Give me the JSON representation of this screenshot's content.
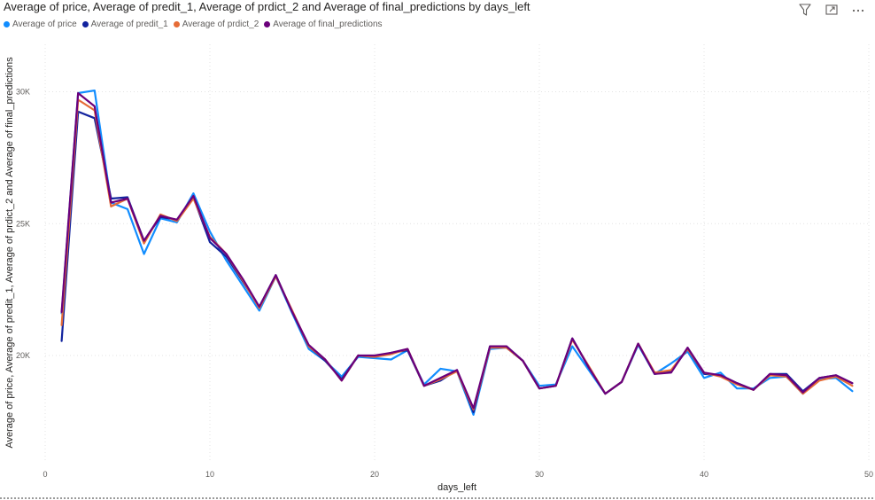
{
  "visual": {
    "title": "Average of price, Average of predit_1, Average of prdict_2 and Average of final_predictions by days_left",
    "icons": [
      "filter-icon",
      "focus-mode-icon",
      "more-options-icon"
    ]
  },
  "chart_data": {
    "type": "line",
    "title": "Average of price, Average of predit_1, Average of prdict_2 and Average of final_predictions by days_left",
    "xlabel": "days_left",
    "ylabel": "Average of price, Average of predit_1, Average of prdict_2 and Average of final_predictions",
    "xlim": [
      0,
      50
    ],
    "ylim": [
      16000,
      31800
    ],
    "xticks": [
      0,
      10,
      20,
      30,
      40,
      50
    ],
    "yticks": [
      20000,
      25000,
      30000
    ],
    "ytick_labels": [
      "20K",
      "25K",
      "30K"
    ],
    "grid": true,
    "legend_position": "top-left",
    "x": [
      1,
      2,
      3,
      4,
      5,
      6,
      7,
      8,
      9,
      10,
      11,
      12,
      13,
      14,
      15,
      16,
      17,
      18,
      19,
      20,
      21,
      22,
      23,
      24,
      25,
      26,
      27,
      28,
      29,
      30,
      31,
      32,
      33,
      34,
      35,
      36,
      37,
      38,
      39,
      40,
      41,
      42,
      43,
      44,
      45,
      46,
      47,
      48,
      49
    ],
    "series": [
      {
        "name": "Average of price",
        "color": "#118DFF",
        "values": [
          21600,
          29950,
          30050,
          25800,
          25550,
          23850,
          25200,
          25050,
          26150,
          24700,
          23600,
          22650,
          21700,
          23000,
          21600,
          20250,
          19800,
          19200,
          19950,
          19900,
          19850,
          20200,
          18900,
          19500,
          19400,
          17750,
          20250,
          20300,
          19800,
          18850,
          18900,
          20350,
          19450,
          18550,
          19000,
          20400,
          19300,
          19700,
          20150,
          19150,
          19350,
          18750,
          18750,
          19150,
          19200,
          18550,
          19100,
          19150,
          18650
        ]
      },
      {
        "name": "Average of predit_1",
        "color": "#12239E",
        "values": [
          20550,
          29250,
          29000,
          25950,
          26000,
          24350,
          25250,
          25150,
          26000,
          24300,
          23750,
          22800,
          21850,
          23050,
          21650,
          20350,
          19800,
          19100,
          20000,
          19950,
          20100,
          20200,
          18850,
          19050,
          19450,
          17850,
          20350,
          20350,
          19800,
          18750,
          18850,
          20650,
          19550,
          18550,
          19000,
          20450,
          19300,
          19400,
          20250,
          19300,
          19250,
          18950,
          18700,
          19300,
          19300,
          18650,
          19150,
          19250,
          18950
        ]
      },
      {
        "name": "Average of prdict_2",
        "color": "#E66C37",
        "values": [
          21150,
          29700,
          29300,
          25650,
          25950,
          24250,
          25350,
          25100,
          25950,
          24500,
          23850,
          22850,
          21800,
          23000,
          21700,
          20350,
          19850,
          19050,
          20000,
          19950,
          20050,
          20250,
          18850,
          19100,
          19400,
          17950,
          20300,
          20300,
          19800,
          18750,
          18850,
          20600,
          19600,
          18550,
          19000,
          20450,
          19350,
          19450,
          20250,
          19350,
          19200,
          18900,
          18700,
          19250,
          19200,
          18550,
          19050,
          19200,
          18850
        ]
      },
      {
        "name": "Average of final_predictions",
        "color": "#6B007B",
        "values": [
          21650,
          29950,
          29450,
          25800,
          25950,
          24350,
          25300,
          25150,
          26050,
          24450,
          23850,
          22900,
          21850,
          23050,
          21650,
          20400,
          19850,
          19050,
          20000,
          20000,
          20100,
          20250,
          18850,
          19150,
          19450,
          18000,
          20350,
          20350,
          19800,
          18750,
          18850,
          20650,
          19550,
          18550,
          19000,
          20450,
          19300,
          19350,
          20300,
          19350,
          19250,
          18950,
          18700,
          19300,
          19250,
          18600,
          19150,
          19250,
          18950
        ]
      }
    ]
  }
}
